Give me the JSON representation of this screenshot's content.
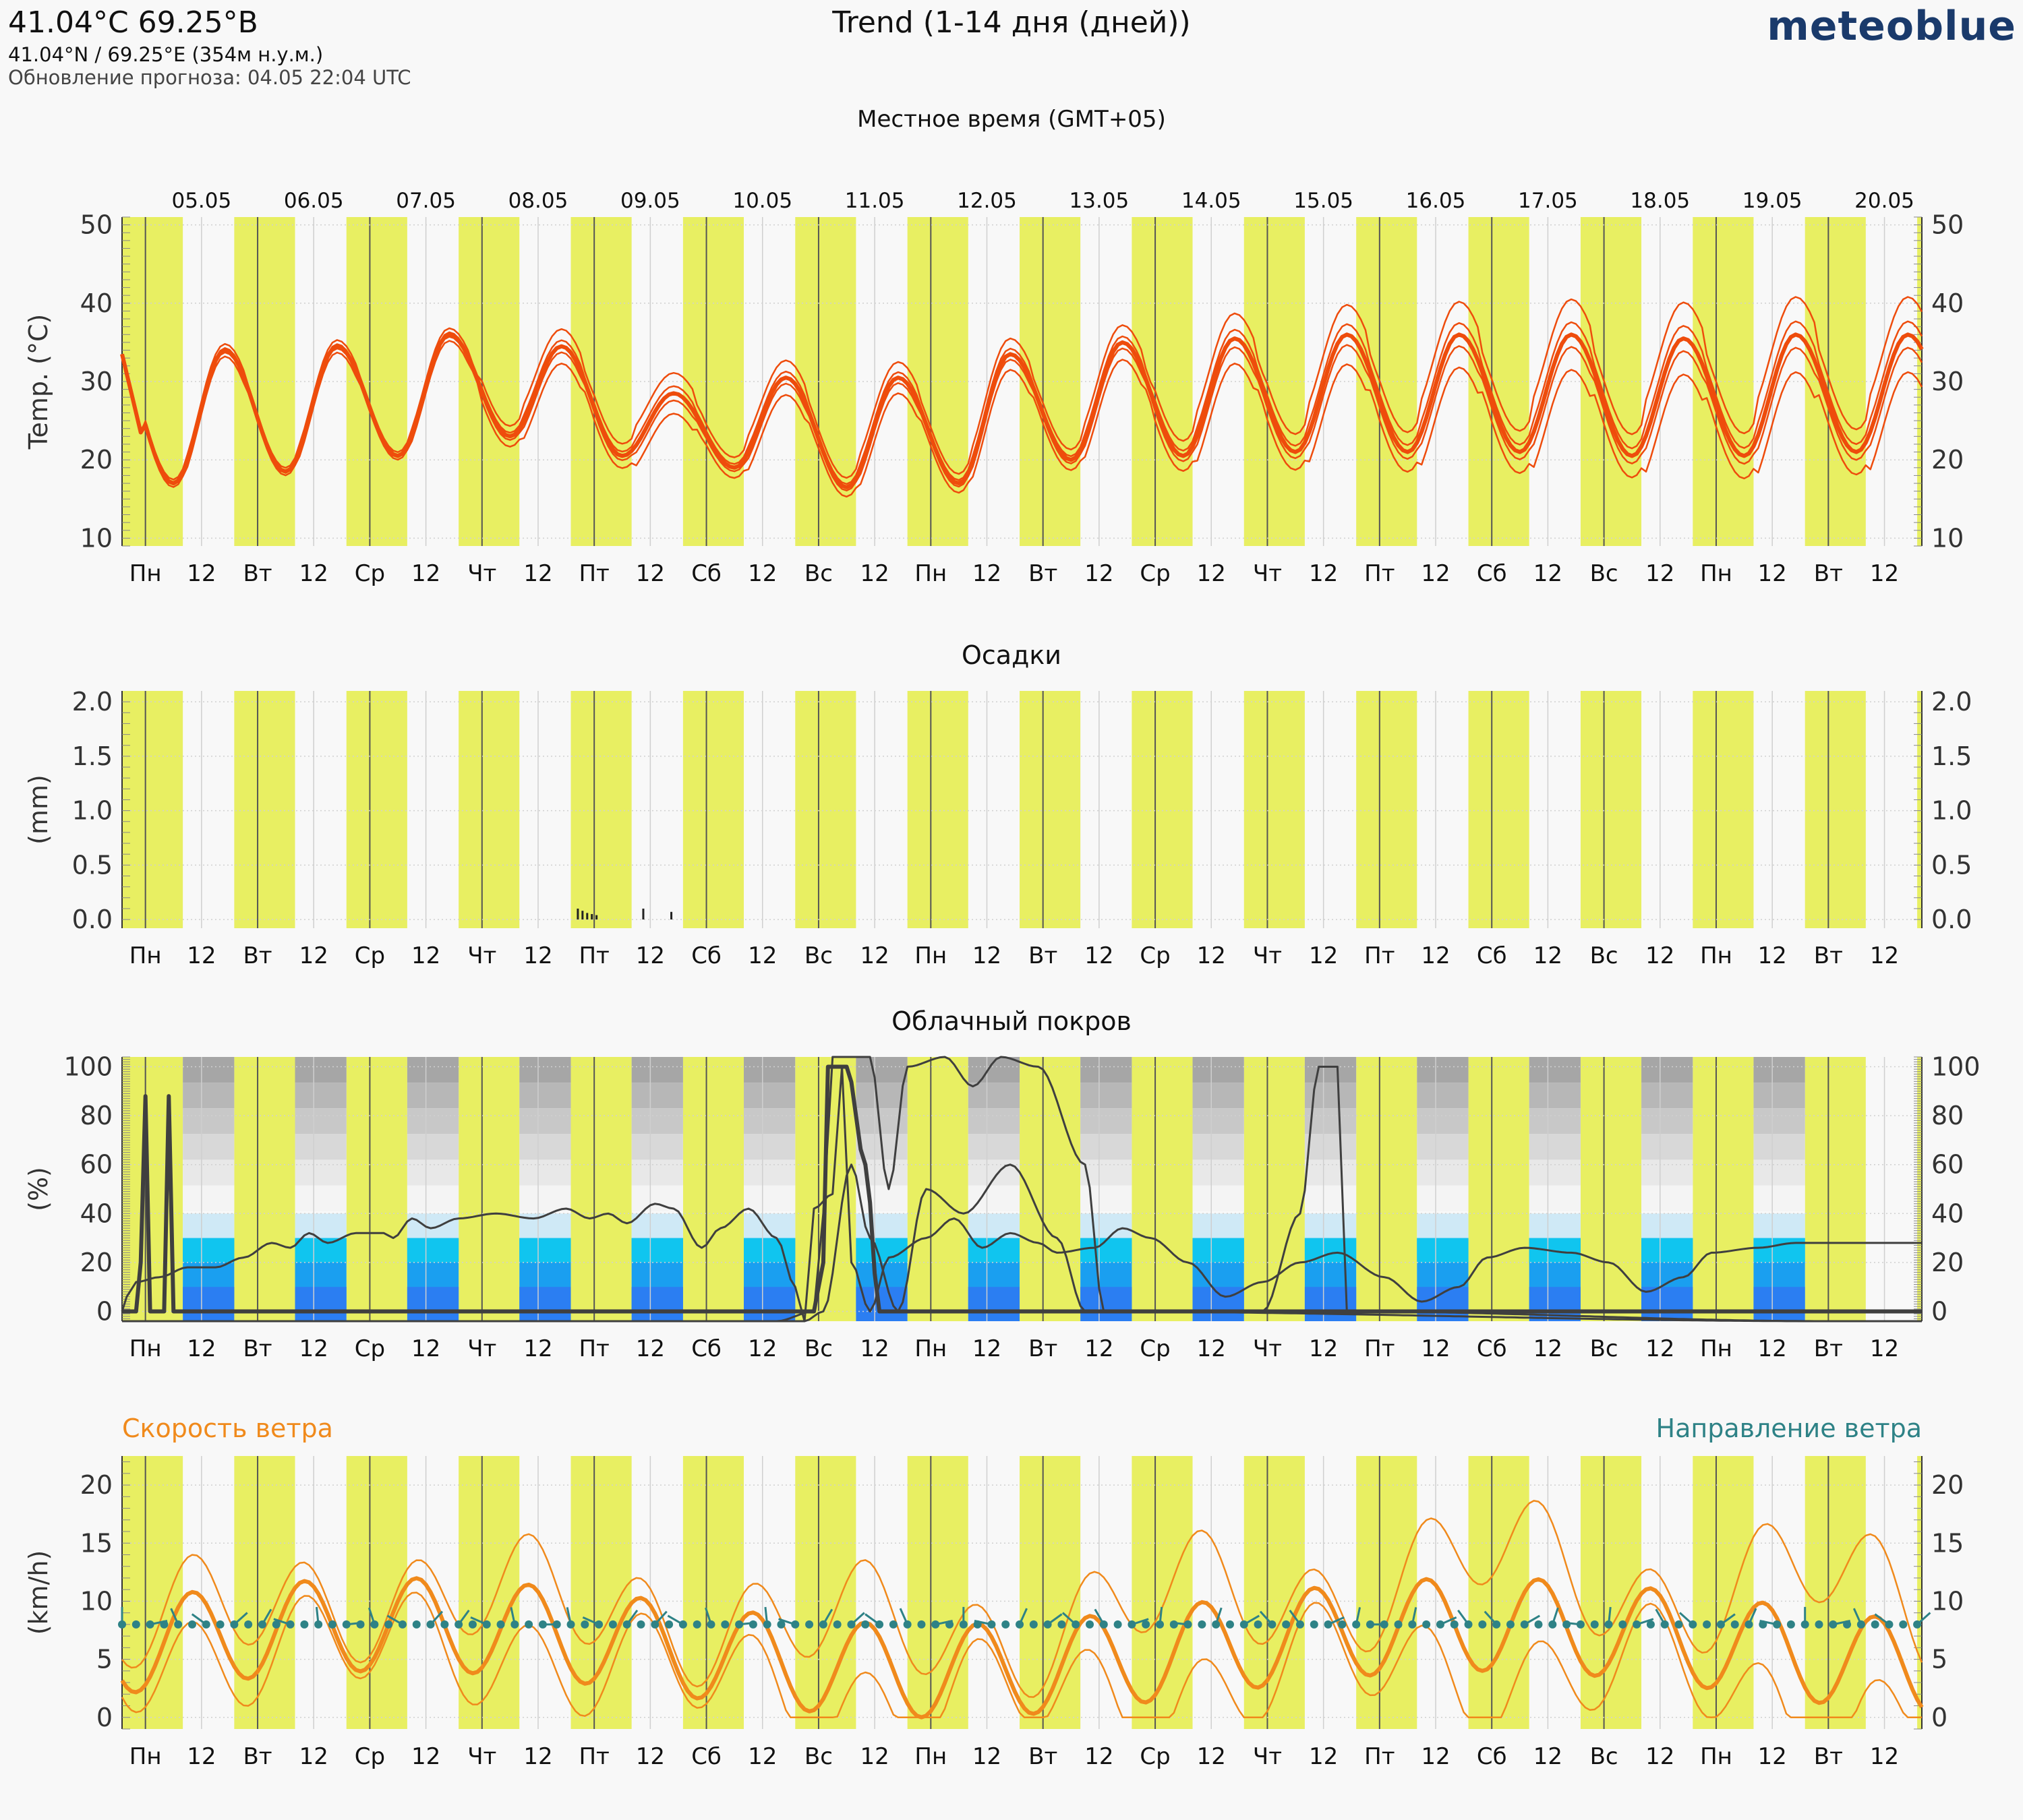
{
  "header": {
    "coords_title": "41.04°C 69.25°B",
    "coords_sub": "41.04°N / 69.25°E (354м н.у.м.)",
    "update_line": "Обновление прогноза: 04.05 22:04 UTC",
    "main_title": "Trend (1-14 дня (дней))",
    "brand": "meteoblue",
    "local_time_label": "Местное время (GMT+05)"
  },
  "colors": {
    "daylight": "#e8ef62",
    "background": "#f8f8f8",
    "temp": "#ee4c0c",
    "wind": "#f08a1c",
    "wind_dir": "#2e8286",
    "cloud_line": "#3f3f3f",
    "low_cloud": "#2b7ef2",
    "mid_cloud": "#10c5ef",
    "high_cloud": "#a6a6a6"
  },
  "chart_data": {
    "days": [
      "05.05",
      "06.05",
      "07.05",
      "08.05",
      "09.05",
      "10.05",
      "11.05",
      "12.05",
      "13.05",
      "14.05",
      "15.05",
      "16.05",
      "17.05",
      "18.05",
      "19.05",
      "20.05"
    ],
    "tick_labels": [
      "Пн",
      "12",
      "Вт",
      "12",
      "Ср",
      "12",
      "Чт",
      "12",
      "Пт",
      "12",
      "Сб",
      "12",
      "Вс",
      "12",
      "Пн",
      "12",
      "Вт",
      "12",
      "Ср",
      "12",
      "Чт",
      "12",
      "Пт",
      "12",
      "Сб",
      "12",
      "Вс",
      "12",
      "Пн",
      "12",
      "Вт",
      "12"
    ],
    "panels": [
      {
        "id": "temperature",
        "type": "line",
        "title": "",
        "ylabel": "Temp. (°C)",
        "ylim": [
          9,
          51
        ],
        "yticks": [
          10,
          20,
          30,
          40,
          50
        ],
        "series_shape": "ensemble: median (thick) with spread lines",
        "daily_min": [
          17,
          18.5,
          20.5,
          23,
          20.5,
          19,
          16.5,
          17,
          20,
          20.5,
          21,
          21,
          21,
          20.5,
          20.5,
          21
        ],
        "daily_max": [
          34,
          34.5,
          36,
          34.5,
          28.5,
          30.5,
          30.5,
          33.5,
          35,
          35.5,
          36,
          36,
          36,
          35.5,
          36,
          36
        ],
        "spread": [
          0.8,
          0.8,
          0.8,
          2.2,
          2.6,
          2.2,
          2.0,
          2.0,
          2.2,
          3.2,
          3.8,
          4.2,
          4.5,
          4.6,
          4.8,
          4.8
        ]
      },
      {
        "id": "precipitation",
        "type": "bar",
        "title": "Осадки",
        "ylabel": "(mm)",
        "ylim": [
          -0.08,
          2.1
        ],
        "yticks": [
          0.0,
          0.5,
          1.0,
          1.5,
          2.0
        ],
        "tick_format": "0.0",
        "bars": [
          {
            "t": 97.5,
            "v": 0.1
          },
          {
            "t": 98.5,
            "v": 0.08
          },
          {
            "t": 99.5,
            "v": 0.06
          },
          {
            "t": 100.5,
            "v": 0.05
          },
          {
            "t": 101.5,
            "v": 0.04
          },
          {
            "t": 111.5,
            "v": 0.1
          },
          {
            "t": 117.5,
            "v": 0.07
          }
        ]
      },
      {
        "id": "cloud_cover",
        "type": "line",
        "title": "Облачный покров",
        "ylabel": "(%)",
        "ylim": [
          -4,
          104
        ],
        "yticks": [
          0,
          20,
          40,
          60,
          80,
          100
        ],
        "layers": [
          "low",
          "mid",
          "high"
        ],
        "median": [
          [
            0,
            0
          ],
          [
            3,
            0
          ],
          [
            4,
            20
          ],
          [
            5,
            88
          ],
          [
            6,
            0
          ],
          [
            9,
            0
          ],
          [
            10,
            88
          ],
          [
            11,
            0
          ],
          [
            12,
            0
          ],
          [
            108,
            0
          ],
          [
            148,
            0
          ],
          [
            150,
            20
          ],
          [
            151,
            100
          ],
          [
            155,
            100
          ],
          [
            159,
            60
          ],
          [
            162,
            0
          ],
          [
            196,
            0
          ],
          [
            210,
            0
          ],
          [
            260,
            0
          ],
          [
            280,
            0
          ],
          [
            300,
            0
          ],
          [
            320,
            0
          ],
          [
            350,
            0
          ],
          [
            365,
            0
          ]
        ],
        "total_mean": [
          [
            0,
            0
          ],
          [
            1,
            6
          ],
          [
            3,
            12
          ],
          [
            8,
            14
          ],
          [
            14,
            18
          ],
          [
            20,
            18
          ],
          [
            26,
            22
          ],
          [
            32,
            28
          ],
          [
            36,
            26
          ],
          [
            40,
            32
          ],
          [
            44,
            28
          ],
          [
            50,
            32
          ],
          [
            56,
            32
          ],
          [
            58,
            30
          ],
          [
            62,
            38
          ],
          [
            66,
            34
          ],
          [
            72,
            38
          ],
          [
            80,
            40
          ],
          [
            88,
            38
          ],
          [
            95,
            42
          ],
          [
            100,
            38
          ],
          [
            104,
            40
          ],
          [
            108,
            36
          ],
          [
            114,
            44
          ],
          [
            118,
            42
          ],
          [
            124,
            26
          ],
          [
            128,
            34
          ],
          [
            134,
            42
          ],
          [
            140,
            30
          ],
          [
            144,
            10
          ],
          [
            146,
            -4
          ],
          [
            148,
            42
          ],
          [
            152,
            48
          ],
          [
            154,
            100
          ],
          [
            156,
            20
          ],
          [
            160,
            0
          ],
          [
            164,
            22
          ],
          [
            172,
            30
          ],
          [
            178,
            38
          ],
          [
            184,
            26
          ],
          [
            190,
            32
          ],
          [
            196,
            28
          ],
          [
            200,
            24
          ],
          [
            208,
            26
          ],
          [
            214,
            34
          ],
          [
            220,
            30
          ],
          [
            228,
            20
          ],
          [
            236,
            6
          ],
          [
            244,
            12
          ],
          [
            252,
            20
          ],
          [
            260,
            24
          ],
          [
            270,
            14
          ],
          [
            278,
            4
          ],
          [
            286,
            10
          ],
          [
            292,
            22
          ],
          [
            300,
            26
          ],
          [
            310,
            24
          ],
          [
            318,
            20
          ],
          [
            326,
            8
          ],
          [
            334,
            14
          ],
          [
            340,
            24
          ],
          [
            350,
            26
          ],
          [
            358,
            28
          ],
          [
            365,
            28
          ]
        ]
      },
      {
        "id": "wind",
        "type": "line",
        "title": "",
        "ylabel": "(km/h)",
        "ylim": [
          -1,
          22.5
        ],
        "yticks": [
          0,
          5,
          10,
          15,
          20
        ],
        "speed_legend": "Скорость ветра",
        "direction_legend": "Направление ветра",
        "direction_marker_level": 8,
        "series_shape": "ensemble: median (thick) with min and max envelope"
      }
    ]
  }
}
